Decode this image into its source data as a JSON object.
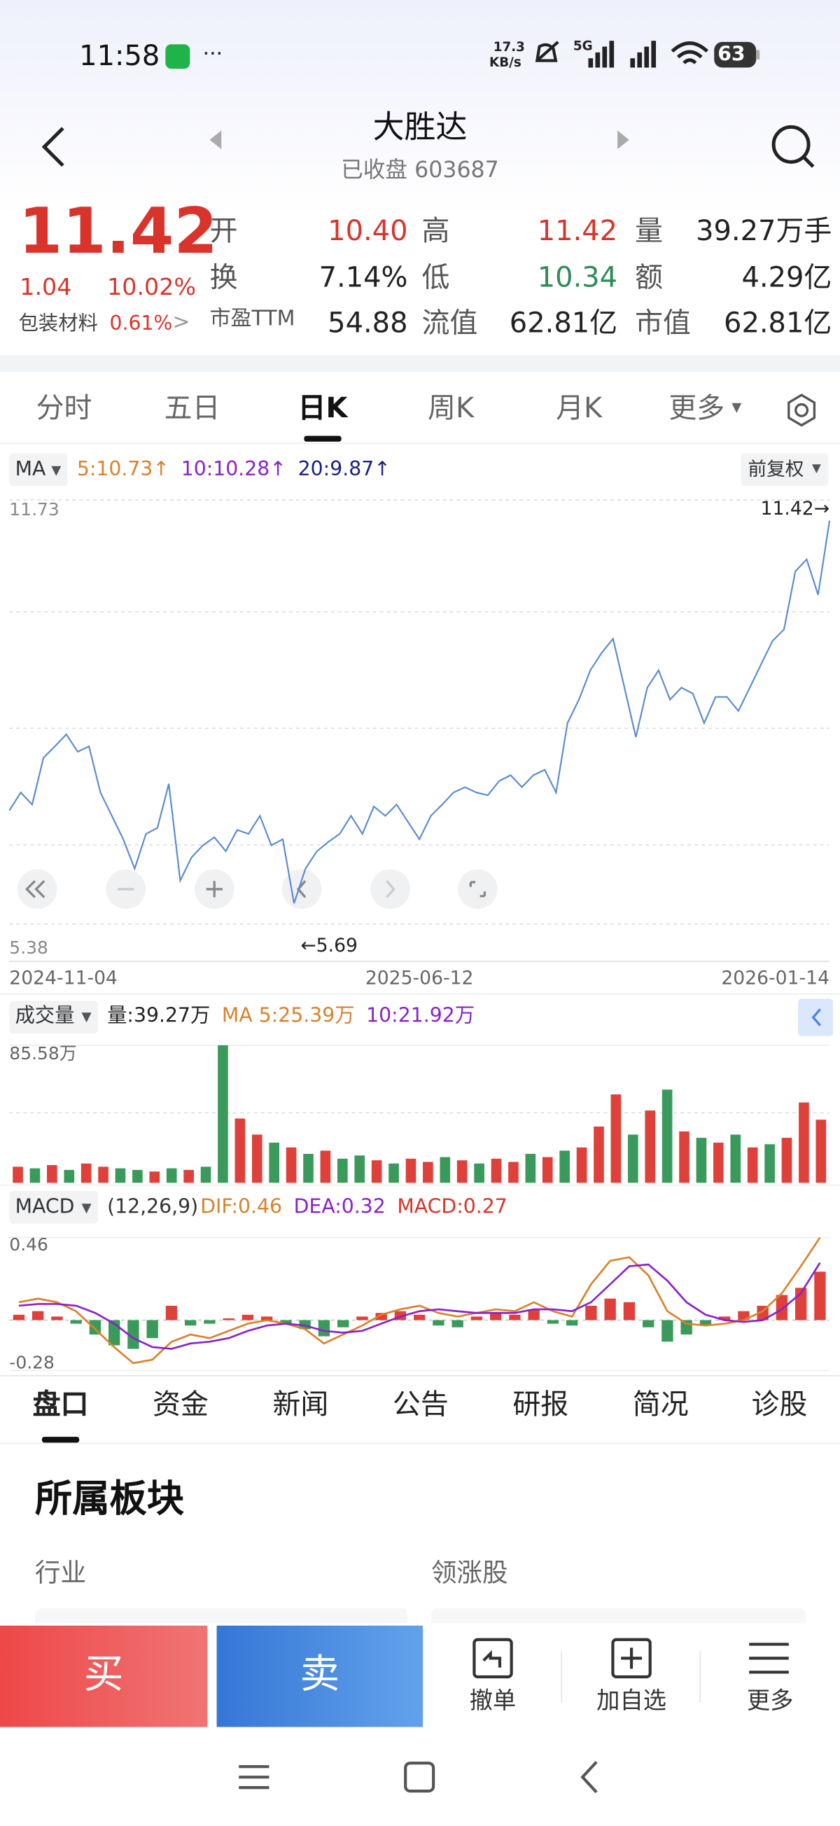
{
  "status_bar": {
    "time": "11:58",
    "speed_value": "17.3",
    "speed_unit": "KB/s",
    "network": "5G",
    "battery": "63"
  },
  "header": {
    "title": "大胜达",
    "subtitle": "已收盘 603687"
  },
  "quote": {
    "price": "11.42",
    "change": "1.04",
    "change_pct": "10.02%",
    "sector": "包装材料",
    "sector_pct": "0.61%",
    "stats": [
      [
        {
          "label": "开",
          "value": "10.40",
          "color": "#d9342b"
        },
        {
          "label": "高",
          "value": "11.42",
          "color": "#d9342b"
        },
        {
          "label": "量",
          "value": "39.27万手",
          "color": "#222222"
        }
      ],
      [
        {
          "label": "换",
          "value": "7.14%",
          "color": "#222222"
        },
        {
          "label": "低",
          "value": "10.34",
          "color": "#2e8b57"
        },
        {
          "label": "额",
          "value": "4.29亿",
          "color": "#222222"
        }
      ],
      [
        {
          "label": "市盈TTM",
          "value": "54.88",
          "color": "#222222"
        },
        {
          "label": "流值",
          "value": "62.81亿",
          "color": "#222222"
        },
        {
          "label": "市值",
          "value": "62.81亿",
          "color": "#222222"
        }
      ]
    ]
  },
  "chart_tabs": {
    "items": [
      "分时",
      "五日",
      "日K",
      "周K",
      "月K",
      "更多"
    ],
    "active": 2
  },
  "ma_bar": {
    "label": "MA",
    "items": [
      {
        "text": "5:10.73↑",
        "color": "#d9822b"
      },
      {
        "text": "10:10.28↑",
        "color": "#8a22c8"
      },
      {
        "text": "20:9.87↑",
        "color": "#1a237e"
      }
    ],
    "adjust": "前复权"
  },
  "chart_data": [
    {
      "type": "line",
      "color": "#5b8bd0",
      "ylim": [
        5.38,
        11.73
      ],
      "yticks": [
        11.73,
        5.38
      ],
      "date_labels": [
        "2024-11-04",
        "2025-06-12",
        "2026-01-14"
      ],
      "annotations": {
        "last": "11.42→",
        "low": "←5.69"
      },
      "values": [
        7.08,
        7.35,
        7.17,
        7.87,
        8.04,
        8.22,
        7.96,
        8.04,
        7.35,
        7.0,
        6.65,
        6.21,
        6.73,
        6.82,
        7.48,
        6.03,
        6.38,
        6.56,
        6.68,
        6.47,
        6.79,
        6.73,
        7.0,
        6.56,
        6.65,
        5.69,
        6.21,
        6.47,
        6.61,
        6.73,
        7.0,
        6.73,
        7.14,
        7.0,
        7.17,
        6.91,
        6.65,
        7.0,
        7.17,
        7.35,
        7.43,
        7.35,
        7.31,
        7.52,
        7.61,
        7.43,
        7.61,
        7.69,
        7.35,
        8.39,
        8.74,
        9.18,
        9.44,
        9.65,
        8.92,
        8.18,
        8.92,
        9.18,
        8.74,
        8.92,
        8.83,
        8.39,
        8.78,
        8.78,
        8.57,
        8.92,
        9.27,
        9.62,
        9.79,
        10.66,
        10.84,
        10.31,
        11.42
      ]
    },
    {
      "type": "bar",
      "title": "成交量",
      "legend": [
        {
          "text": "量:39.27万",
          "color": "#222222"
        },
        {
          "text": "MA 5:25.39万",
          "color": "#d9822b"
        },
        {
          "text": "10:21.92万",
          "color": "#8a22c8"
        }
      ],
      "ylim": [
        0,
        85.58
      ],
      "yticks": [
        {
          "value": 85.58,
          "label": "85.58万"
        }
      ],
      "values": [
        10,
        9,
        11,
        8,
        12,
        10,
        9,
        8,
        7,
        9,
        8,
        10,
        85.58,
        40,
        30,
        25,
        22,
        18,
        20,
        15,
        17,
        14,
        12,
        15,
        13,
        16,
        14,
        12,
        15,
        13,
        18,
        16,
        20,
        22,
        35,
        55,
        30,
        45,
        58,
        32,
        28,
        25,
        30,
        22,
        24,
        28,
        50,
        39.27
      ],
      "colors": [
        "#e0403a",
        "#3a9a5b",
        "#e0403a",
        "#3a9a5b",
        "#e0403a",
        "#e0403a",
        "#3a9a5b",
        "#3a9a5b",
        "#e0403a",
        "#3a9a5b",
        "#e0403a",
        "#3a9a5b",
        "#3a9a5b",
        "#e0403a",
        "#e0403a",
        "#3a9a5b",
        "#e0403a",
        "#3a9a5b",
        "#e0403a",
        "#3a9a5b",
        "#3a9a5b",
        "#e0403a",
        "#3a9a5b",
        "#e0403a",
        "#e0403a",
        "#3a9a5b",
        "#e0403a",
        "#3a9a5b",
        "#e0403a",
        "#e0403a",
        "#3a9a5b",
        "#e0403a",
        "#3a9a5b",
        "#e0403a",
        "#e0403a",
        "#e0403a",
        "#3a9a5b",
        "#e0403a",
        "#3a9a5b",
        "#e0403a",
        "#3a9a5b",
        "#e0403a",
        "#3a9a5b",
        "#e0403a",
        "#3a9a5b",
        "#e0403a",
        "#e0403a",
        "#e0403a"
      ]
    },
    {
      "type": "macd",
      "title": "MACD",
      "params": "(12,26,9)",
      "up_color": "#e0403a",
      "down_color": "#3a9a5b",
      "legend": [
        {
          "text": "DIF:0.46",
          "color": "#d9822b"
        },
        {
          "text": "DEA:0.32",
          "color": "#8a22c8"
        },
        {
          "text": "MACD:0.27",
          "color": "#d9342b"
        }
      ],
      "ylim": [
        -0.28,
        0.46
      ],
      "yticks": [
        0.46,
        -0.28
      ],
      "series": [
        {
          "name": "MACD",
          "values": [
            0.03,
            0.05,
            0.02,
            -0.02,
            -0.08,
            -0.14,
            -0.16,
            -0.1,
            0.08,
            -0.03,
            -0.02,
            0.01,
            0.03,
            0.02,
            -0.02,
            -0.05,
            -0.09,
            -0.04,
            0.02,
            0.04,
            0.05,
            0.03,
            -0.03,
            -0.04,
            0.02,
            0.04,
            0.03,
            0.06,
            -0.02,
            -0.03,
            0.08,
            0.12,
            0.1,
            -0.04,
            -0.12,
            -0.08,
            -0.03,
            0.02,
            0.05,
            0.08,
            0.14,
            0.18,
            0.27
          ]
        },
        {
          "name": "DIF",
          "color": "#d9822b",
          "values": [
            0.1,
            0.12,
            0.1,
            0.05,
            -0.05,
            -0.15,
            -0.24,
            -0.22,
            -0.12,
            -0.08,
            -0.1,
            -0.06,
            -0.02,
            0.0,
            -0.02,
            -0.05,
            -0.13,
            -0.08,
            -0.03,
            0.03,
            0.06,
            0.08,
            0.04,
            0.02,
            0.04,
            0.06,
            0.05,
            0.1,
            0.05,
            0.02,
            0.2,
            0.33,
            0.35,
            0.25,
            0.05,
            -0.02,
            -0.03,
            -0.02,
            0.0,
            0.05,
            0.15,
            0.3,
            0.46
          ]
        },
        {
          "name": "DEA",
          "color": "#8a22c8",
          "values": [
            0.08,
            0.09,
            0.09,
            0.08,
            0.04,
            -0.02,
            -0.1,
            -0.15,
            -0.16,
            -0.13,
            -0.12,
            -0.1,
            -0.06,
            -0.03,
            -0.02,
            -0.03,
            -0.06,
            -0.07,
            -0.06,
            -0.02,
            0.02,
            0.05,
            0.06,
            0.05,
            0.04,
            0.04,
            0.04,
            0.06,
            0.06,
            0.05,
            0.1,
            0.2,
            0.3,
            0.31,
            0.22,
            0.1,
            0.03,
            0.0,
            -0.01,
            0.0,
            0.06,
            0.15,
            0.32
          ]
        }
      ]
    }
  ],
  "info_tabs": {
    "items": [
      "盘口",
      "资金",
      "新闻",
      "公告",
      "研报",
      "简况",
      "诊股"
    ],
    "active": 0
  },
  "section": {
    "title": "所属板块",
    "left": "行业",
    "right": "领涨股"
  },
  "action_bar": {
    "buy": "买",
    "sell": "卖",
    "actions": [
      "撤单",
      "加自选",
      "更多"
    ]
  }
}
